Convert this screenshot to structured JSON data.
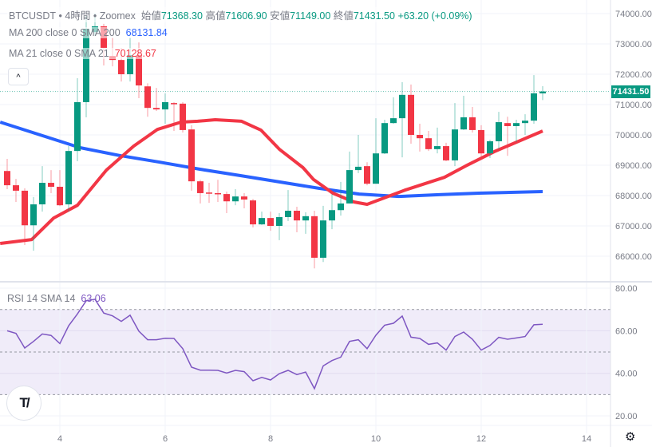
{
  "header": {
    "symbol": "BTCUSDT",
    "sep": "•",
    "interval": "4時間",
    "exchange": "Zoomex",
    "open_label": "始値",
    "open": "71368.30",
    "high_label": "高値",
    "high": "71606.90",
    "low_label": "安値",
    "low": "71149.00",
    "close_label": "終値",
    "close": "71431.50",
    "change": "+63.20 (+0.09%)"
  },
  "indicators": {
    "ma200_label": "MA 200 close 0 SMA 200",
    "ma200_value": "68131.84",
    "ma21_label": "MA 21 close 0 SMA 21",
    "ma21_value": "70128.67",
    "rsi_label": "RSI 14 SMA 14",
    "rsi_value": "63.06",
    "collapse_icon": "chevron-up-icon",
    "collapse_glyph": "^"
  },
  "price_tag": "71431.50",
  "logo_text": "TV",
  "settings_glyph": "⚙",
  "colors": {
    "up": "#089981",
    "down": "#f23645",
    "ma200": "#2962ff",
    "ma21": "#f23645",
    "rsi": "#7e57c2",
    "rsi_band": "#f0ecf9"
  },
  "chart_data": {
    "type": "candlestick",
    "price_axis": {
      "min": 65500,
      "max": 74300,
      "ticks": [
        "74000.00",
        "73000.00",
        "72000.00",
        "71000.00",
        "70000.00",
        "69000.00",
        "68000.00",
        "67000.00",
        "66000.00"
      ]
    },
    "rsi_axis": {
      "ticks": [
        "80.00",
        "60.00",
        "40.00",
        "20.00"
      ],
      "band": [
        30,
        70
      ],
      "mid": 50
    },
    "time_ticks": [
      {
        "label": "4",
        "index": 6
      },
      {
        "label": "6",
        "index": 18
      },
      {
        "label": "8",
        "index": 30
      },
      {
        "label": "10",
        "index": 42
      },
      {
        "label": "12",
        "index": 54
      },
      {
        "label": "14",
        "index": 66
      }
    ],
    "ohlc": [
      [
        68810,
        69210,
        68210,
        68340
      ],
      [
        68340,
        68550,
        67790,
        68160
      ],
      [
        68160,
        68240,
        66370,
        67020
      ],
      [
        67020,
        67950,
        66180,
        67710
      ],
      [
        67710,
        68970,
        67470,
        68420
      ],
      [
        68420,
        68840,
        68080,
        68290
      ],
      [
        68290,
        68840,
        67650,
        67680
      ],
      [
        67710,
        69630,
        67470,
        69470
      ],
      [
        69470,
        71870,
        69130,
        71080
      ],
      [
        71080,
        73920,
        70580,
        73500
      ],
      [
        73390,
        74000,
        73260,
        73580
      ],
      [
        73580,
        73660,
        72290,
        72870
      ],
      [
        72600,
        73210,
        72260,
        72470
      ],
      [
        72470,
        72870,
        71760,
        72000
      ],
      [
        72000,
        73210,
        71760,
        72630
      ],
      [
        72630,
        73050,
        71210,
        71630
      ],
      [
        71600,
        71700,
        70600,
        70890
      ],
      [
        70890,
        71550,
        70790,
        70840
      ],
      [
        70840,
        71370,
        70370,
        71080
      ],
      [
        71050,
        71080,
        70130,
        71030
      ],
      [
        71030,
        71080,
        70080,
        70160
      ],
      [
        70180,
        70320,
        68160,
        68470
      ],
      [
        68470,
        68520,
        67740,
        68080
      ],
      [
        68100,
        68420,
        67760,
        68080
      ],
      [
        68080,
        68520,
        67790,
        68050
      ],
      [
        68050,
        68130,
        67420,
        67810
      ],
      [
        67810,
        68210,
        67680,
        67970
      ],
      [
        67970,
        68080,
        67580,
        67870
      ],
      [
        67840,
        67890,
        66950,
        67050
      ],
      [
        67050,
        67470,
        67030,
        67260
      ],
      [
        67260,
        67470,
        66840,
        67000
      ],
      [
        67000,
        67420,
        66530,
        67290
      ],
      [
        67290,
        68180,
        67160,
        67500
      ],
      [
        67500,
        67630,
        66790,
        67180
      ],
      [
        67180,
        67450,
        66740,
        67320
      ],
      [
        67320,
        67500,
        65600,
        65950
      ],
      [
        65950,
        67660,
        65810,
        67180
      ],
      [
        67180,
        68050,
        66890,
        67520
      ],
      [
        67520,
        68450,
        67340,
        67740
      ],
      [
        67740,
        69450,
        67740,
        68840
      ],
      [
        68840,
        70000,
        68740,
        68950
      ],
      [
        68970,
        69100,
        68340,
        68390
      ],
      [
        68390,
        70550,
        68390,
        69390
      ],
      [
        69390,
        70500,
        69370,
        70390
      ],
      [
        70390,
        71240,
        70370,
        70550
      ],
      [
        70550,
        71740,
        69260,
        71320
      ],
      [
        71320,
        71660,
        69710,
        70000
      ],
      [
        70000,
        70370,
        69450,
        69890
      ],
      [
        69890,
        70130,
        69470,
        69530
      ],
      [
        69530,
        70240,
        69390,
        69630
      ],
      [
        69630,
        69740,
        69130,
        69160
      ],
      [
        69160,
        71050,
        68970,
        70180
      ],
      [
        70180,
        71290,
        70160,
        70580
      ],
      [
        70580,
        70920,
        70080,
        70160
      ],
      [
        70160,
        70320,
        69240,
        69390
      ],
      [
        69390,
        69840,
        69240,
        69790
      ],
      [
        69790,
        70760,
        69530,
        70420
      ],
      [
        70390,
        70600,
        69310,
        70290
      ],
      [
        70290,
        70500,
        69760,
        70390
      ],
      [
        70390,
        70680,
        70000,
        70470
      ],
      [
        70470,
        71970,
        70370,
        71370
      ],
      [
        71368.3,
        71606.9,
        71149,
        71431.5
      ]
    ],
    "sma200": [
      [
        -0.8,
        70420
      ],
      [
        8.3,
        69580
      ],
      [
        12.8,
        69320
      ],
      [
        17.4,
        69100
      ],
      [
        21.9,
        68870
      ],
      [
        26.5,
        68660
      ],
      [
        31,
        68450
      ],
      [
        35.5,
        68240
      ],
      [
        40.1,
        68050
      ],
      [
        44.6,
        67970
      ],
      [
        49.2,
        68030
      ],
      [
        53.7,
        68080
      ],
      [
        61,
        68131.84
      ]
    ],
    "sma21": [
      [
        -0.8,
        66420
      ],
      [
        2.8,
        66550
      ],
      [
        5.3,
        67260
      ],
      [
        8,
        67680
      ],
      [
        11.3,
        68840
      ],
      [
        14.4,
        69630
      ],
      [
        17.1,
        70180
      ],
      [
        19.8,
        70420
      ],
      [
        21.7,
        70450
      ],
      [
        23.7,
        70500
      ],
      [
        26.7,
        70450
      ],
      [
        28.9,
        70160
      ],
      [
        31,
        69530
      ],
      [
        33.7,
        68920
      ],
      [
        34.9,
        68530
      ],
      [
        37.1,
        68080
      ],
      [
        39.5,
        67790
      ],
      [
        41,
        67710
      ],
      [
        45.3,
        68180
      ],
      [
        49.8,
        68600
      ],
      [
        52.2,
        68970
      ],
      [
        55.5,
        69450
      ],
      [
        61,
        70128.67
      ]
    ],
    "rsi": [
      60,
      58.8,
      51.9,
      55,
      58.5,
      57.8,
      54,
      62.3,
      67.9,
      74.1,
      74.8,
      68.3,
      67,
      64.4,
      67.3,
      59.8,
      55.8,
      55.8,
      56.5,
      56.4,
      51.6,
      42.9,
      41.5,
      41.5,
      41.4,
      40.1,
      41.4,
      40.8,
      36.5,
      38.1,
      36.9,
      39.8,
      41.4,
      39.4,
      40.6,
      32.8,
      43.5,
      46,
      47.6,
      55,
      55.8,
      51.6,
      57.9,
      62.6,
      63.5,
      66.9,
      57,
      56.4,
      53.6,
      54.3,
      50.9,
      57.3,
      59.4,
      56,
      50.9,
      53.1,
      56.9,
      56,
      56.6,
      57.3,
      62.8,
      63.06
    ],
    "last_price": 71431.5
  }
}
